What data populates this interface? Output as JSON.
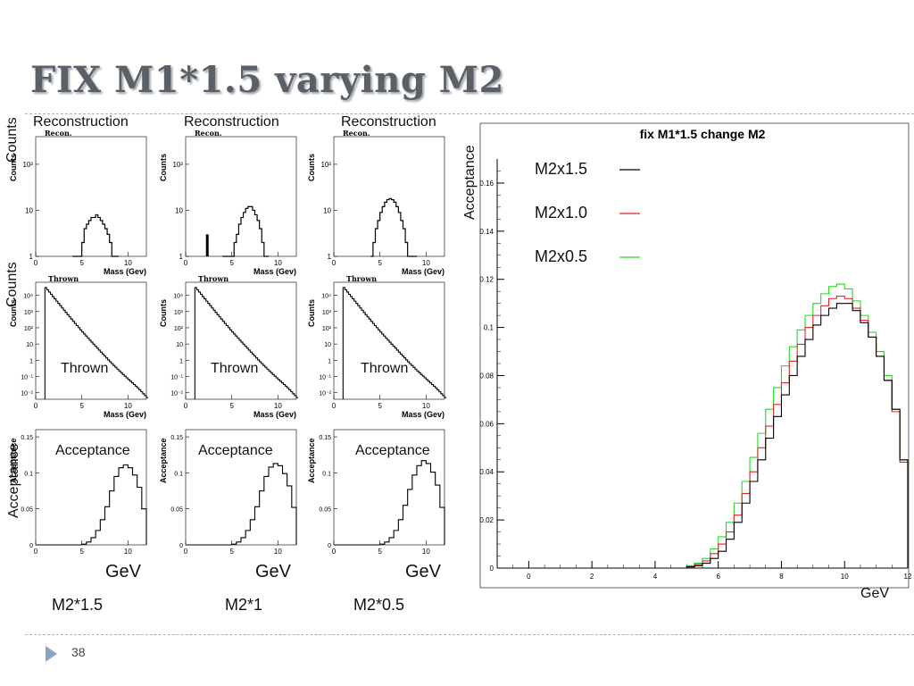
{
  "slide": {
    "title": "FIX M1*1.5 varying M2",
    "page_number": "38",
    "side_labels": {
      "counts_top": "Counts",
      "counts_mid": "Counts",
      "acceptance": "Acceptance"
    },
    "columns": [
      {
        "recon_caption": "Reconstruction",
        "thrown_caption": "Thrown",
        "acc_caption": "Acceptance",
        "gev": "GeV",
        "label": "M2*1.5"
      },
      {
        "recon_caption": "Reconstruction",
        "thrown_caption": "Thrown",
        "acc_caption": "Acceptance",
        "gev": "GeV",
        "label": "M2*1"
      },
      {
        "recon_caption": "Reconstruction",
        "thrown_caption": "Thrown",
        "acc_caption": "Acceptance",
        "gev": "GeV",
        "label": "M2*0.5"
      }
    ],
    "big_plot": {
      "acceptance_label": "Acceptance",
      "gev_label": "GeV"
    }
  },
  "colors": {
    "title": "#5b5f66",
    "rule": "#9fb4c9",
    "arrow": "#8aa5c4",
    "black": "#000000",
    "red": "#e0242c",
    "green": "#22dd22"
  },
  "small_plot_text": {
    "recon_title": "Recon.",
    "thrown_title": "Thrown",
    "ytitle_counts": "Counts",
    "ytitle_acc": "Acceptance",
    "xtitle_mass": "Mass (Gev)"
  },
  "chart_data": [
    {
      "type": "line",
      "title": "fix M1*1.5 change M2",
      "xlabel": "GeV",
      "ylabel": "Acceptance",
      "xlim": [
        -1,
        12
      ],
      "ylim": [
        0,
        0.17
      ],
      "x_ticks": [
        0,
        2,
        4,
        6,
        8,
        10,
        12
      ],
      "y_ticks": [
        0,
        0.02,
        0.04,
        0.06,
        0.08,
        0.1,
        0.12,
        0.14,
        0.16
      ],
      "y_tick_labels": [
        "0",
        "0.02",
        "0.04",
        "0.06",
        "0.08",
        "0.1",
        "0.12",
        "0.14",
        "0.16"
      ],
      "legend_position": "top-left",
      "x_bins": [
        5.0,
        5.25,
        5.5,
        5.75,
        6.0,
        6.25,
        6.5,
        6.75,
        7.0,
        7.25,
        7.5,
        7.75,
        8.0,
        8.25,
        8.5,
        8.75,
        9.0,
        9.25,
        9.5,
        9.75,
        10.0,
        10.25,
        10.5,
        10.75,
        11.0,
        11.25,
        11.5,
        11.75
      ],
      "series": [
        {
          "name": "M2x1.5",
          "color": "#000000",
          "values": [
            0.0005,
            0.001,
            0.002,
            0.004,
            0.007,
            0.012,
            0.019,
            0.027,
            0.036,
            0.045,
            0.054,
            0.063,
            0.072,
            0.08,
            0.088,
            0.095,
            0.101,
            0.105,
            0.108,
            0.11,
            0.11,
            0.107,
            0.102,
            0.096,
            0.088,
            0.078,
            0.066,
            0.045
          ]
        },
        {
          "name": "M2x1.0",
          "color": "#e0242c",
          "values": [
            0.0007,
            0.0015,
            0.003,
            0.006,
            0.01,
            0.015,
            0.022,
            0.031,
            0.04,
            0.05,
            0.059,
            0.068,
            0.077,
            0.086,
            0.093,
            0.1,
            0.105,
            0.109,
            0.112,
            0.113,
            0.112,
            0.108,
            0.103,
            0.096,
            0.088,
            0.078,
            0.065,
            0.044
          ]
        },
        {
          "name": "M2x0.5",
          "color": "#22dd22",
          "values": [
            0.001,
            0.002,
            0.004,
            0.008,
            0.013,
            0.019,
            0.027,
            0.036,
            0.046,
            0.056,
            0.066,
            0.075,
            0.084,
            0.092,
            0.099,
            0.105,
            0.11,
            0.114,
            0.117,
            0.118,
            0.116,
            0.111,
            0.105,
            0.098,
            0.09,
            0.08,
            0.066,
            0.045
          ]
        }
      ]
    },
    {
      "type": "line",
      "panel": "reconstructed mass distributions",
      "xlabel": "Mass (Gev)",
      "ylabel": "Counts",
      "yscale": "log",
      "xlim": [
        0,
        12
      ],
      "y_ticks": [
        "1",
        "10",
        "10²"
      ],
      "x_ticks": [
        0,
        5,
        10
      ],
      "x_bins": [
        4.0,
        4.25,
        4.5,
        4.75,
        5.0,
        5.25,
        5.5,
        5.75,
        6.0,
        6.25,
        6.5,
        6.75,
        7.0,
        7.25,
        7.5,
        7.75,
        8.0,
        8.25,
        8.5,
        8.75
      ],
      "series": [
        {
          "name": "M2*1.5",
          "values": [
            0,
            0,
            0,
            0,
            2,
            4,
            5,
            6,
            7,
            7,
            8,
            7,
            6,
            5,
            4,
            3,
            2,
            0,
            0,
            0
          ]
        },
        {
          "name": "M2*1",
          "values": [
            0,
            0,
            0,
            0,
            1,
            2,
            3,
            5,
            7,
            9,
            11,
            12,
            12,
            10,
            8,
            6,
            4,
            2,
            1,
            0
          ]
        },
        {
          "name": "M2*0.5",
          "values": [
            1,
            2,
            4,
            6,
            9,
            12,
            15,
            17,
            18,
            17,
            15,
            12,
            9,
            6,
            4,
            2,
            1,
            0,
            0,
            0
          ]
        }
      ]
    },
    {
      "type": "line",
      "panel": "thrown mass distributions",
      "xlabel": "Mass (Gev)",
      "ylabel": "Counts",
      "yscale": "log",
      "xlim": [
        0,
        12
      ],
      "y_ticks": [
        "10⁻²",
        "10⁻¹",
        "1",
        "10",
        "10²",
        "10³",
        "10⁴",
        "10⁵"
      ],
      "x_ticks": [
        0,
        5,
        10
      ],
      "series": [
        {
          "name": "M2*1.5",
          "x": [
            1,
            2,
            3,
            4,
            5,
            6,
            7,
            8,
            9,
            10,
            11,
            12
          ],
          "values": [
            30000,
            6000,
            1200,
            250,
            55,
            13,
            3.2,
            0.8,
            0.22,
            0.065,
            0.02,
            0.005
          ]
        },
        {
          "name": "M2*1",
          "x": [
            1,
            2,
            3,
            4,
            5,
            6,
            7,
            8,
            9,
            10,
            11,
            12
          ],
          "values": [
            30000,
            6000,
            1200,
            250,
            55,
            13,
            3.2,
            0.8,
            0.22,
            0.065,
            0.02,
            0.005
          ]
        },
        {
          "name": "M2*0.5",
          "x": [
            1,
            2,
            3,
            4,
            5,
            6,
            7,
            8,
            9,
            10,
            11,
            12
          ],
          "values": [
            30000,
            6000,
            1200,
            250,
            55,
            13,
            3.2,
            0.8,
            0.22,
            0.065,
            0.02,
            0.005
          ]
        }
      ]
    },
    {
      "type": "line",
      "panel": "acceptance",
      "ylabel": "Acceptance",
      "xlim": [
        0,
        12
      ],
      "ylim": [
        0,
        0.16
      ],
      "y_ticks": [
        0,
        0.05,
        0.1,
        0.15
      ],
      "x_ticks": [
        0,
        5,
        10
      ],
      "x_bins": [
        5.0,
        5.5,
        6.0,
        6.5,
        7.0,
        7.5,
        8.0,
        8.5,
        9.0,
        9.5,
        10.0,
        10.5,
        11.0,
        11.5
      ],
      "series": [
        {
          "name": "M2*1.5",
          "values": [
            0.001,
            0.004,
            0.01,
            0.02,
            0.035,
            0.053,
            0.075,
            0.095,
            0.107,
            0.111,
            0.107,
            0.097,
            0.08,
            0.05
          ]
        },
        {
          "name": "M2*1",
          "values": [
            0.001,
            0.004,
            0.01,
            0.02,
            0.035,
            0.053,
            0.075,
            0.095,
            0.108,
            0.113,
            0.11,
            0.099,
            0.082,
            0.052
          ]
        },
        {
          "name": "M2*0.5",
          "values": [
            0.001,
            0.004,
            0.01,
            0.02,
            0.035,
            0.055,
            0.077,
            0.097,
            0.11,
            0.117,
            0.113,
            0.101,
            0.083,
            0.052
          ]
        }
      ]
    }
  ]
}
